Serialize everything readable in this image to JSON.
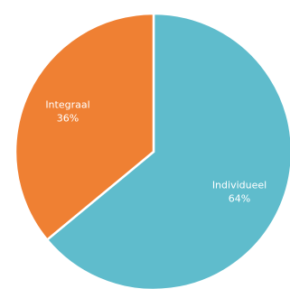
{
  "chart_data": {
    "type": "pie",
    "title": "",
    "slices": [
      {
        "label": "Individueel",
        "value": 64,
        "value_text": "64%",
        "color": "#5fbccc"
      },
      {
        "label": "Integraal",
        "value": 36,
        "value_text": "36%",
        "color": "#ef8033"
      }
    ],
    "start_angle_deg": 0,
    "direction": "clockwise",
    "legend": "none"
  }
}
